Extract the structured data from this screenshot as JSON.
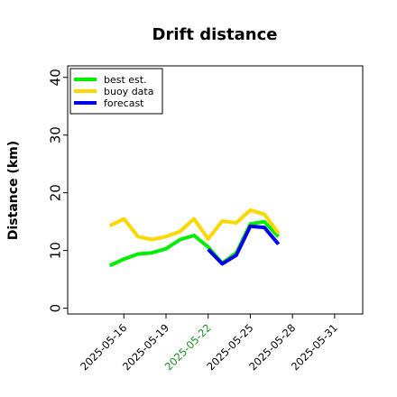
{
  "chart_data": {
    "type": "line",
    "title": "Drift distance",
    "xlabel": "",
    "ylabel": "Distance (km)",
    "ylim": [
      -1,
      42
    ],
    "xlim": [
      "2025-05-12",
      "2025-06-02"
    ],
    "yticks": [
      0,
      10,
      20,
      30,
      40
    ],
    "xticks": [
      "2025-05-16",
      "2025-05-19",
      "2025-05-22",
      "2025-05-25",
      "2025-05-28",
      "2025-05-31"
    ],
    "highlighted_xtick": "2025-05-22",
    "legend_position": "top-left",
    "grid": false,
    "series": [
      {
        "name": "best est.",
        "color": "#00ee00",
        "x": [
          "2025-05-15",
          "2025-05-16",
          "2025-05-17",
          "2025-05-18",
          "2025-05-19",
          "2025-05-20",
          "2025-05-21",
          "2025-05-22",
          "2025-05-23",
          "2025-05-24",
          "2025-05-25",
          "2025-05-26",
          "2025-05-27"
        ],
        "values": [
          7.4,
          8.5,
          9.4,
          9.6,
          10.3,
          11.9,
          12.6,
          10.6,
          7.8,
          9.6,
          14.6,
          15.0,
          12.4
        ]
      },
      {
        "name": "buoy data",
        "color": "#ffd700",
        "x": [
          "2025-05-15",
          "2025-05-16",
          "2025-05-17",
          "2025-05-18",
          "2025-05-19",
          "2025-05-20",
          "2025-05-21",
          "2025-05-22",
          "2025-05-23",
          "2025-05-24",
          "2025-05-25",
          "2025-05-26",
          "2025-05-27"
        ],
        "values": [
          14.3,
          15.5,
          12.4,
          11.9,
          12.4,
          13.3,
          15.5,
          12.0,
          15.1,
          14.8,
          17.0,
          16.3,
          13.0
        ]
      },
      {
        "name": "forecast",
        "color": "#0000ee",
        "x": [
          "2025-05-22",
          "2025-05-23",
          "2025-05-24",
          "2025-05-25",
          "2025-05-26",
          "2025-05-27"
        ],
        "values": [
          10.2,
          7.7,
          9.2,
          14.2,
          14.0,
          11.1
        ]
      }
    ]
  }
}
